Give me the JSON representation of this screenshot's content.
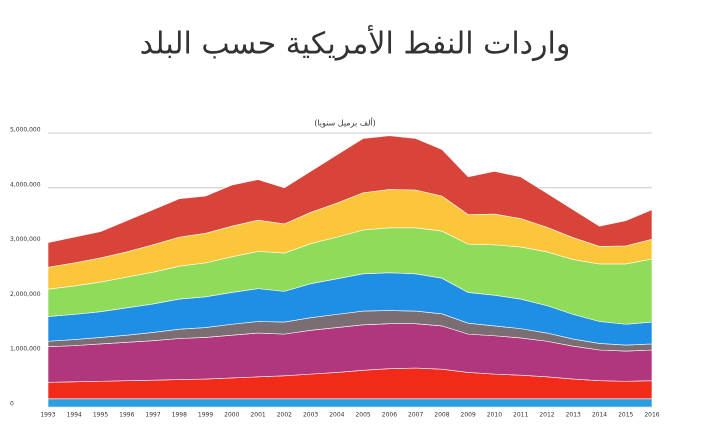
{
  "chart_data": {
    "type": "stacked_area",
    "title": "واردات النفط الأمريكية حسب البلد",
    "subtitle": "(ألف برميل سنويا)",
    "categories": [
      "1993",
      "1994",
      "1995",
      "1996",
      "1997",
      "1998",
      "1999",
      "2000",
      "2001",
      "2002",
      "2003",
      "2004",
      "2005",
      "2006",
      "2007",
      "2008",
      "2009",
      "2010",
      "2011",
      "2012",
      "2013",
      "2014",
      "2015",
      "2016"
    ],
    "ylim": [
      0,
      5000000
    ],
    "yticks": [
      0,
      {
        "value": 1000000,
        "label": "1,000,000"
      },
      {
        "value": 2000000,
        "label": "2,000,000"
      },
      {
        "value": 3000000,
        "label": "3,000,000"
      },
      {
        "value": 4000000,
        "label": "4,000,000"
      },
      {
        "value": 5000000,
        "label": "5,000,000"
      }
    ],
    "grid": true,
    "series": [
      {
        "color": "#2a9fe0",
        "values": [
          150000,
          150000,
          150000,
          150000,
          150000,
          150000,
          150000,
          150000,
          150000,
          150000,
          150000,
          150000,
          150000,
          150000,
          150000,
          150000,
          150000,
          150000,
          150000,
          150000,
          150000,
          150000,
          150000,
          150000
        ]
      },
      {
        "color": "#f22a1a",
        "values": [
          300000,
          310000,
          320000,
          330000,
          340000,
          350000,
          360000,
          380000,
          400000,
          420000,
          450000,
          480000,
          520000,
          550000,
          560000,
          540000,
          480000,
          450000,
          430000,
          400000,
          360000,
          330000,
          320000,
          330000
        ]
      },
      {
        "color": "#b0367e",
        "values": [
          650000,
          660000,
          680000,
          700000,
          720000,
          750000,
          760000,
          780000,
          800000,
          760000,
          800000,
          820000,
          830000,
          820000,
          810000,
          790000,
          700000,
          700000,
          680000,
          650000,
          600000,
          560000,
          550000,
          560000
        ]
      },
      {
        "color": "#7a6e72",
        "values": [
          100000,
          110000,
          120000,
          130000,
          150000,
          170000,
          180000,
          200000,
          210000,
          220000,
          230000,
          240000,
          250000,
          240000,
          230000,
          220000,
          200000,
          180000,
          170000,
          150000,
          130000,
          120000,
          110000,
          110000
        ]
      },
      {
        "color": "#1f8fe6",
        "values": [
          450000,
          460000,
          470000,
          500000,
          520000,
          550000,
          560000,
          580000,
          600000,
          560000,
          620000,
          650000,
          680000,
          690000,
          680000,
          650000,
          560000,
          560000,
          540000,
          500000,
          450000,
          400000,
          380000,
          400000
        ]
      },
      {
        "color": "#8fdc5a",
        "values": [
          500000,
          520000,
          540000,
          560000,
          580000,
          600000,
          620000,
          650000,
          680000,
          700000,
          730000,
          760000,
          800000,
          820000,
          840000,
          860000,
          880000,
          920000,
          950000,
          980000,
          1000000,
          1050000,
          1100000,
          1150000
        ]
      },
      {
        "color": "#fcc63a",
        "values": [
          400000,
          420000,
          440000,
          460000,
          500000,
          530000,
          540000,
          560000,
          570000,
          530000,
          570000,
          620000,
          680000,
          700000,
          690000,
          640000,
          540000,
          560000,
          520000,
          450000,
          400000,
          320000,
          330000,
          360000
        ]
      },
      {
        "color": "#d8433a",
        "values": [
          450000,
          470000,
          480000,
          570000,
          640000,
          700000,
          680000,
          750000,
          740000,
          660000,
          750000,
          880000,
          990000,
          980000,
          940000,
          850000,
          690000,
          780000,
          760000,
          620000,
          510000,
          370000,
          460000,
          540000
        ]
      }
    ]
  }
}
